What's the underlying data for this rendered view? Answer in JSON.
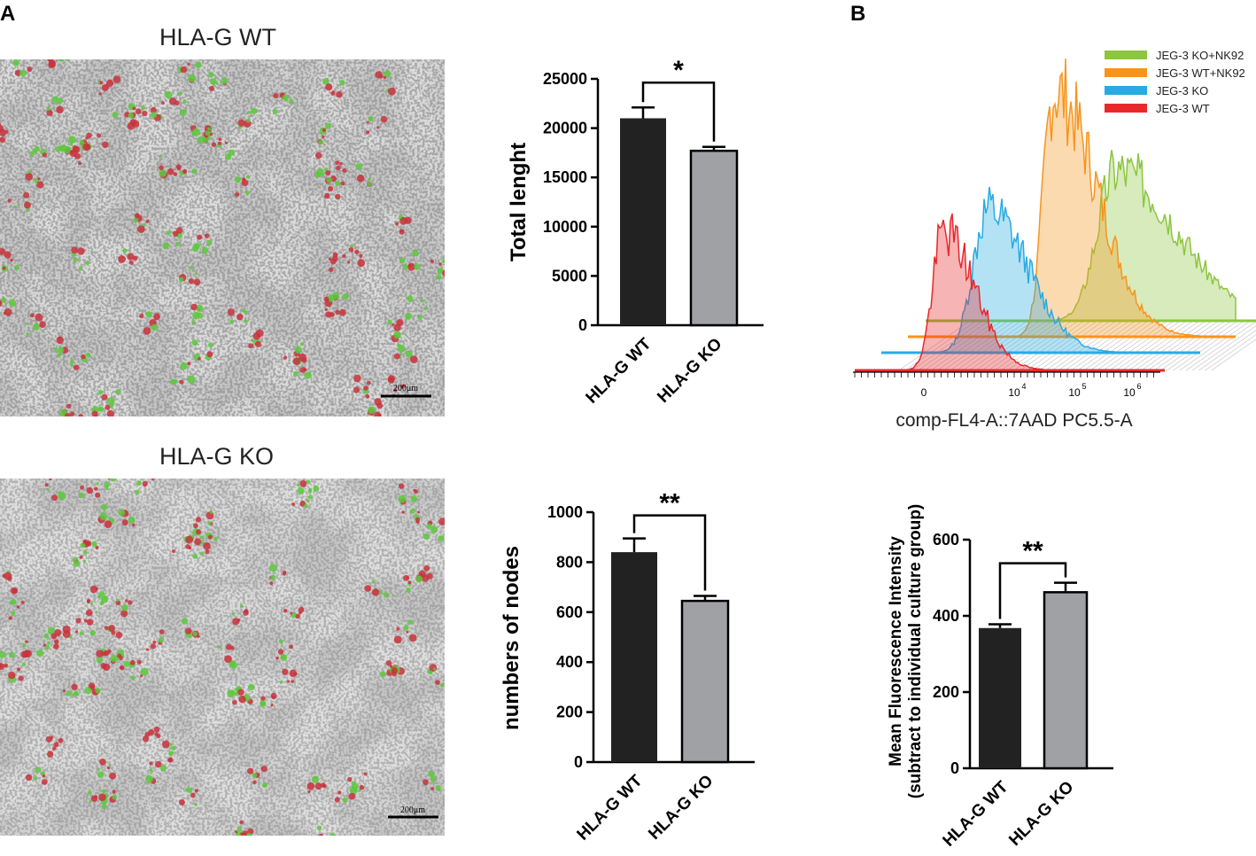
{
  "panels": {
    "a_label": "A",
    "b_label": "B"
  },
  "micrographs": [
    {
      "title": "HLA-G WT",
      "scale_bar": "200μm"
    },
    {
      "title": "HLA-G KO",
      "scale_bar": "200μm"
    }
  ],
  "colors": {
    "bar_wt": "#222222",
    "bar_ko": "#a0a1a5",
    "hist_green": "#8cc63f",
    "hist_orange": "#f7941d",
    "hist_blue": "#29abe2",
    "hist_red": "#e8282b"
  },
  "chart_data": [
    {
      "type": "bar",
      "ylabel": "Total lenght",
      "categories": [
        "HLA-G WT",
        "HLA-G KO"
      ],
      "values": [
        21000,
        17700
      ],
      "errors": [
        1100,
        400
      ],
      "ylim": [
        0,
        25000
      ],
      "yticks": [
        "0",
        "5000",
        "10000",
        "15000",
        "20000",
        "25000"
      ],
      "significance": "*"
    },
    {
      "type": "bar",
      "ylabel": "numbers of nodes",
      "categories": [
        "HLA-G WT",
        "HLA-G KO"
      ],
      "values": [
        840,
        645
      ],
      "errors": [
        55,
        20
      ],
      "ylim": [
        0,
        1000
      ],
      "yticks": [
        "0",
        "200",
        "400",
        "600",
        "800",
        "1000"
      ],
      "significance": "**"
    },
    {
      "type": "area",
      "xlabel": "comp-FL4-A::7AAD PC5.5-A",
      "xticks": [
        "0",
        "10",
        "10",
        "10"
      ],
      "xtick_exponents": [
        "",
        "4",
        "5",
        "6"
      ],
      "legend_position": "top-right",
      "series": [
        {
          "name": "JEG-3 KO+NK92"
        },
        {
          "name": "JEG-3 WT+NK92"
        },
        {
          "name": "JEG-3 KO"
        },
        {
          "name": "JEG-3 WT"
        }
      ]
    },
    {
      "type": "bar",
      "ylabel_line1": "Mean Fluorescence Intensity",
      "ylabel_line2": "(subtract to individual culture group)",
      "categories": [
        "HLA-G WT",
        "HLA-G KO"
      ],
      "values": [
        368,
        462
      ],
      "errors": [
        10,
        25
      ],
      "ylim": [
        0,
        600
      ],
      "yticks": [
        "0",
        "200",
        "400",
        "600"
      ],
      "significance": "**"
    }
  ]
}
